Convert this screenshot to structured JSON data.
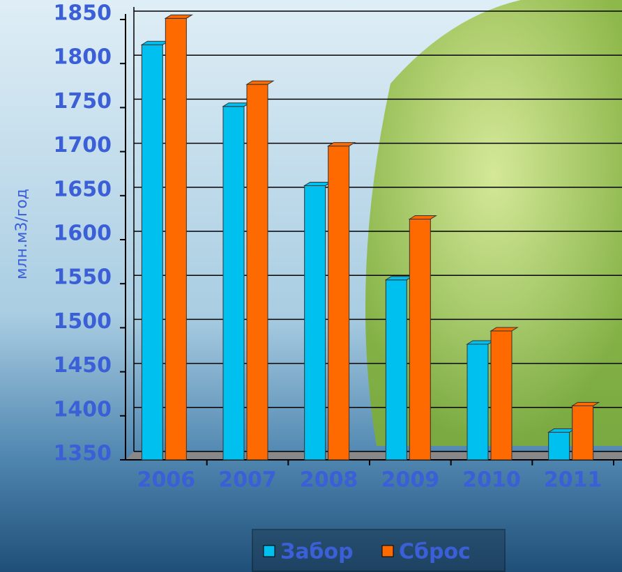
{
  "chart_data": {
    "type": "bar",
    "y_label": "млн.м3/год",
    "categories": [
      "2006",
      "2007",
      "2008",
      "2009",
      "2010",
      "2011"
    ],
    "series": [
      {
        "name": "Забор",
        "color": "#00c0ef",
        "values": [
          1815,
          1745,
          1655,
          1548,
          1475,
          1375
        ]
      },
      {
        "name": "Сброс",
        "color": "#ff6a00",
        "values": [
          1845,
          1770,
          1700,
          1617,
          1490,
          1405
        ]
      }
    ],
    "ylim": [
      1350,
      1850
    ],
    "yticks": [
      1350,
      1400,
      1450,
      1500,
      1550,
      1600,
      1650,
      1700,
      1750,
      1800,
      1850
    ],
    "grid": true
  }
}
